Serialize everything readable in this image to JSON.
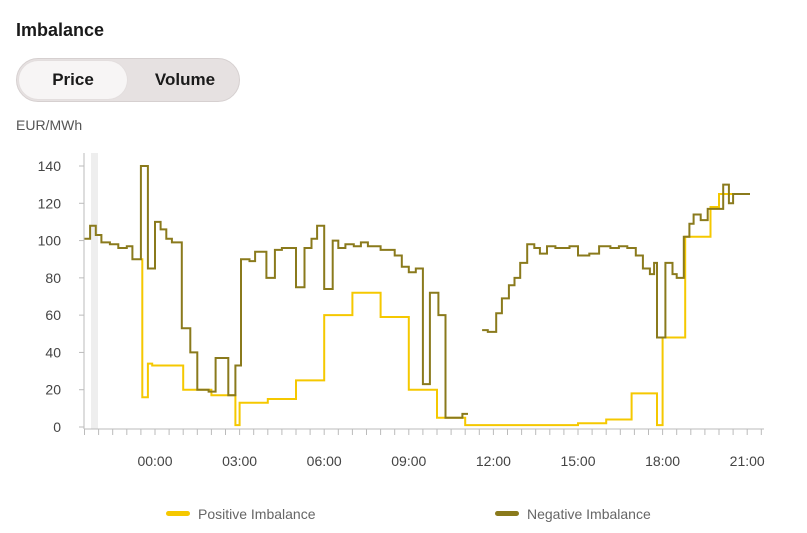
{
  "title": "Imbalance",
  "toggle": {
    "options": [
      "Price",
      "Volume"
    ],
    "selected": "Price"
  },
  "unit_label": "EUR/MWh",
  "colors": {
    "positive": "#f5c800",
    "negative": "#8a7a1c",
    "axis": "#999999"
  },
  "chart_data": {
    "type": "line",
    "step": true,
    "xlabel": "",
    "ylabel": "EUR/MWh",
    "x_unit": "hours (relative to 00:00)",
    "xlim": [
      -2.5,
      21.5
    ],
    "ylim": [
      0,
      140
    ],
    "yticks": [
      0,
      20,
      40,
      60,
      80,
      100,
      120,
      140
    ],
    "xticks": [
      {
        "value": 0,
        "label": "00:00"
      },
      {
        "value": 3,
        "label": "03:00"
      },
      {
        "value": 6,
        "label": "06:00"
      },
      {
        "value": 9,
        "label": "09:00"
      },
      {
        "value": 12,
        "label": "12:00"
      },
      {
        "value": 15,
        "label": "15:00"
      },
      {
        "value": 18,
        "label": "18:00"
      },
      {
        "value": 21,
        "label": "21:00"
      }
    ],
    "legend_position": "bottom",
    "series": [
      {
        "name": "Positive Imbalance",
        "color": "#f5c800",
        "points": [
          [
            -0.5,
            90
          ],
          [
            -0.45,
            16
          ],
          [
            -0.25,
            34
          ],
          [
            -0.1,
            33
          ],
          [
            1.0,
            20
          ],
          [
            2.0,
            17
          ],
          [
            2.85,
            1
          ],
          [
            3.0,
            13
          ],
          [
            4.0,
            15
          ],
          [
            5.0,
            25
          ],
          [
            6.0,
            60
          ],
          [
            7.0,
            72
          ],
          [
            8.0,
            59
          ],
          [
            9.0,
            20
          ],
          [
            10.0,
            5
          ],
          [
            11.0,
            1
          ],
          [
            12.0,
            1
          ],
          [
            15.0,
            2
          ],
          [
            16.0,
            4
          ],
          [
            16.9,
            18
          ],
          [
            17.8,
            1
          ],
          [
            18.0,
            48
          ],
          [
            18.8,
            102
          ],
          [
            19.7,
            118
          ],
          [
            20.0,
            125
          ],
          [
            20.7,
            125
          ]
        ]
      },
      {
        "name": "Negative Imbalance",
        "color": "#8a7a1c",
        "points": [
          [
            -2.5,
            101
          ],
          [
            -2.3,
            108
          ],
          [
            -2.1,
            103
          ],
          [
            -1.9,
            99
          ],
          [
            -1.6,
            98
          ],
          [
            -1.3,
            96
          ],
          [
            -1.0,
            97
          ],
          [
            -0.8,
            90
          ],
          [
            -0.5,
            140
          ],
          [
            -0.25,
            85
          ],
          [
            0.0,
            110
          ],
          [
            0.2,
            106
          ],
          [
            0.4,
            101
          ],
          [
            0.6,
            99
          ],
          [
            0.95,
            53
          ],
          [
            1.25,
            40
          ],
          [
            1.5,
            20
          ],
          [
            1.9,
            19
          ],
          [
            2.15,
            37
          ],
          [
            2.6,
            17
          ],
          [
            2.85,
            33
          ],
          [
            3.05,
            90
          ],
          [
            3.35,
            89
          ],
          [
            3.55,
            94
          ],
          [
            3.95,
            80
          ],
          [
            4.25,
            95
          ],
          [
            4.5,
            96
          ],
          [
            5.0,
            75
          ],
          [
            5.3,
            96
          ],
          [
            5.55,
            101
          ],
          [
            5.75,
            108
          ],
          [
            6.0,
            74
          ],
          [
            6.3,
            100
          ],
          [
            6.5,
            96
          ],
          [
            6.75,
            98
          ],
          [
            7.05,
            97
          ],
          [
            7.3,
            99
          ],
          [
            7.55,
            97
          ],
          [
            8.0,
            95
          ],
          [
            8.5,
            92
          ],
          [
            8.75,
            86
          ],
          [
            9.0,
            83
          ],
          [
            9.25,
            85
          ],
          [
            9.5,
            23
          ],
          [
            9.75,
            72
          ],
          [
            10.05,
            60
          ],
          [
            10.3,
            5
          ],
          [
            10.7,
            5
          ],
          [
            10.9,
            7
          ],
          [
            11.1,
            7
          ]
        ]
      },
      {
        "name": "Negative Imbalance",
        "color": "#8a7a1c",
        "points": [
          [
            11.6,
            52
          ],
          [
            11.8,
            51
          ],
          [
            12.1,
            61
          ],
          [
            12.3,
            69
          ],
          [
            12.55,
            76
          ],
          [
            12.75,
            80
          ],
          [
            12.95,
            88
          ],
          [
            13.2,
            98
          ],
          [
            13.45,
            96
          ],
          [
            13.65,
            93
          ],
          [
            13.9,
            97
          ],
          [
            14.2,
            96
          ],
          [
            14.7,
            97
          ],
          [
            15.0,
            92
          ],
          [
            15.4,
            93
          ],
          [
            15.75,
            97
          ],
          [
            16.15,
            96
          ],
          [
            16.45,
            97
          ],
          [
            16.75,
            96
          ],
          [
            17.05,
            92
          ],
          [
            17.3,
            85
          ],
          [
            17.55,
            82
          ],
          [
            17.7,
            88
          ],
          [
            17.8,
            48
          ],
          [
            18.1,
            88
          ],
          [
            18.35,
            82
          ],
          [
            18.5,
            80
          ],
          [
            18.75,
            102
          ],
          [
            18.95,
            109
          ],
          [
            19.1,
            114
          ],
          [
            19.35,
            111
          ],
          [
            19.6,
            117
          ],
          [
            20.15,
            130
          ],
          [
            20.35,
            120
          ],
          [
            20.5,
            125
          ],
          [
            21.1,
            125
          ]
        ]
      }
    ]
  }
}
